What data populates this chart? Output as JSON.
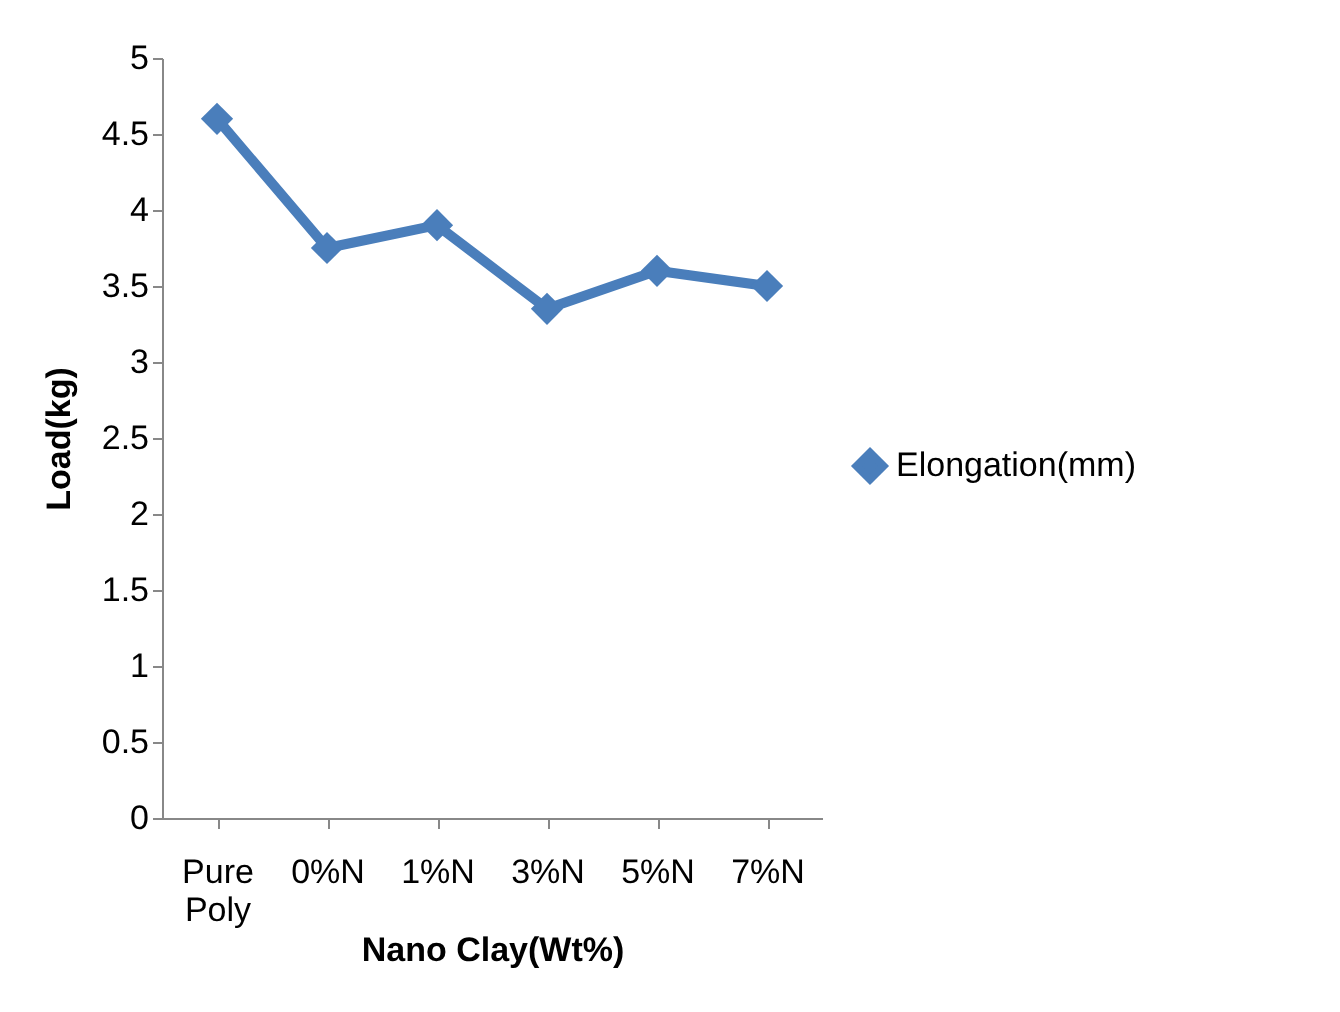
{
  "chart_data": {
    "type": "line",
    "xlabel": "Nano Clay(Wt%)",
    "ylabel": "Load(kg)",
    "categories": [
      "Pure Poly",
      "0%N",
      "1%N",
      "3%N",
      "5%N",
      "7%N"
    ],
    "series": [
      {
        "name": "Elongation(mm)",
        "color": "#4a7ebb",
        "values": [
          4.6,
          3.75,
          3.9,
          3.35,
          3.6,
          3.5
        ]
      }
    ],
    "ylim": [
      0,
      5
    ],
    "yticks": [
      0,
      0.5,
      1,
      1.5,
      2,
      2.5,
      3,
      3.5,
      4,
      4.5,
      5
    ],
    "grid": false,
    "legend": "right",
    "marker": "diamond",
    "line_style": "solid"
  }
}
